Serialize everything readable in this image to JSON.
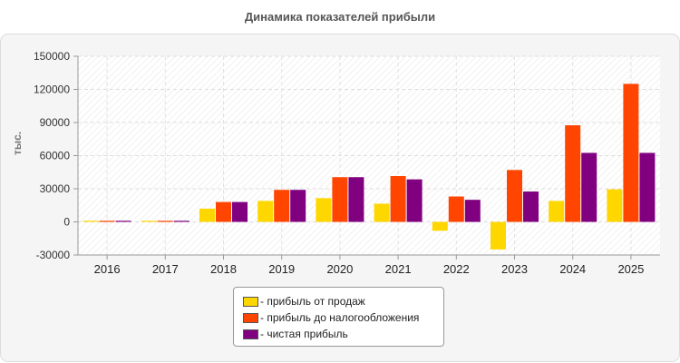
{
  "chart_data": {
    "type": "bar",
    "title": "Динамика показателей прибыли",
    "ylabel": "тыс.",
    "xlabel": "",
    "ylim": [
      -30000,
      150000
    ],
    "yticks": [
      -30000,
      0,
      30000,
      60000,
      90000,
      120000,
      150000
    ],
    "categories": [
      "2016",
      "2017",
      "2018",
      "2019",
      "2020",
      "2021",
      "2022",
      "2023",
      "2024",
      "2025"
    ],
    "series": [
      {
        "name": "- прибыль от продаж",
        "color": "#ffd700",
        "values": [
          1000,
          1000,
          12000,
          19000,
          21500,
          16500,
          -8000,
          -25000,
          19000,
          29500
        ]
      },
      {
        "name": "- прибыль до налогообложения",
        "color": "#ff4500",
        "values": [
          1000,
          1000,
          18000,
          29000,
          40500,
          41500,
          23000,
          47000,
          87500,
          125000
        ]
      },
      {
        "name": "- чистая прибыль",
        "color": "#800080",
        "values": [
          1000,
          1000,
          18000,
          29000,
          40500,
          38500,
          20000,
          27500,
          62500,
          62500
        ]
      }
    ],
    "grid": true,
    "legend_position": "bottom-center"
  }
}
